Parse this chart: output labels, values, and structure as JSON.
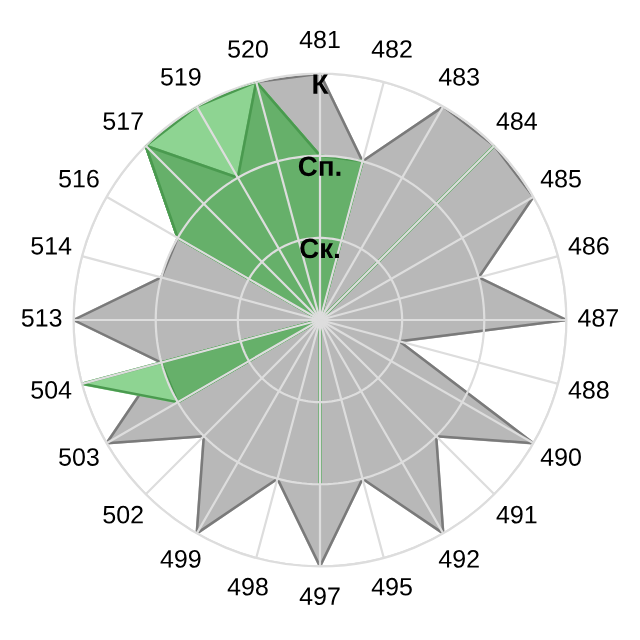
{
  "chart_data": {
    "type": "radar",
    "categories": [
      "481",
      "482",
      "483",
      "484",
      "485",
      "486",
      "487",
      "488",
      "490",
      "491",
      "492",
      "495",
      "497",
      "498",
      "499",
      "502",
      "503",
      "504",
      "513",
      "514",
      "516",
      "517",
      "519",
      "520"
    ],
    "series": [
      {
        "color": "#b8b8b8",
        "values": [
          3,
          2,
          3,
          3,
          3,
          2,
          3,
          1,
          3,
          2,
          3,
          2,
          3,
          2,
          3,
          2,
          3,
          2,
          3,
          2,
          2,
          3,
          3,
          3
        ]
      },
      {
        "color": "#8ed492",
        "values": [
          2,
          2,
          0,
          3,
          0,
          0,
          0,
          0,
          0,
          0,
          0,
          0,
          2,
          0,
          0,
          0,
          2,
          3,
          0,
          0,
          2,
          3,
          3,
          3
        ]
      },
      {
        "color": "#66b06a",
        "values": [
          2,
          2,
          0,
          3,
          0,
          0,
          0,
          0,
          0,
          0,
          0,
          0,
          2,
          0,
          0,
          0,
          2,
          2,
          0,
          0,
          2,
          3,
          2,
          3
        ]
      }
    ],
    "ylim": [
      0,
      3
    ],
    "yticks": [
      {
        "value": 1,
        "label": "Ск."
      },
      {
        "value": 2,
        "label": "Сп."
      },
      {
        "value": 3,
        "label": "К"
      }
    ],
    "grid": true
  }
}
